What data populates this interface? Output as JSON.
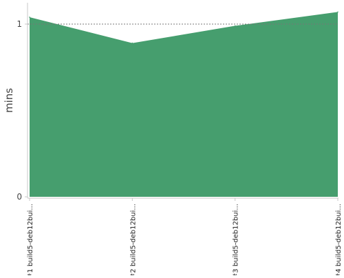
{
  "chart_data": {
    "type": "area",
    "categories": [
      "#1 build5-deb12bui...",
      "#2 build5-deb12bui...",
      "#3 build5-deb12bui...",
      "#4 build5-deb12bui..."
    ],
    "values": [
      1.04,
      0.89,
      0.99,
      1.07
    ],
    "ylabel": "mins",
    "ylim": [
      0,
      1.12
    ],
    "y_ticks": [
      0,
      1
    ],
    "reference_line": 1,
    "grid": false,
    "legend": "none",
    "colors": {
      "area": "#469e6e",
      "axis": "#c8c8c8",
      "reference_line": "#777777",
      "text": "#444444"
    }
  }
}
